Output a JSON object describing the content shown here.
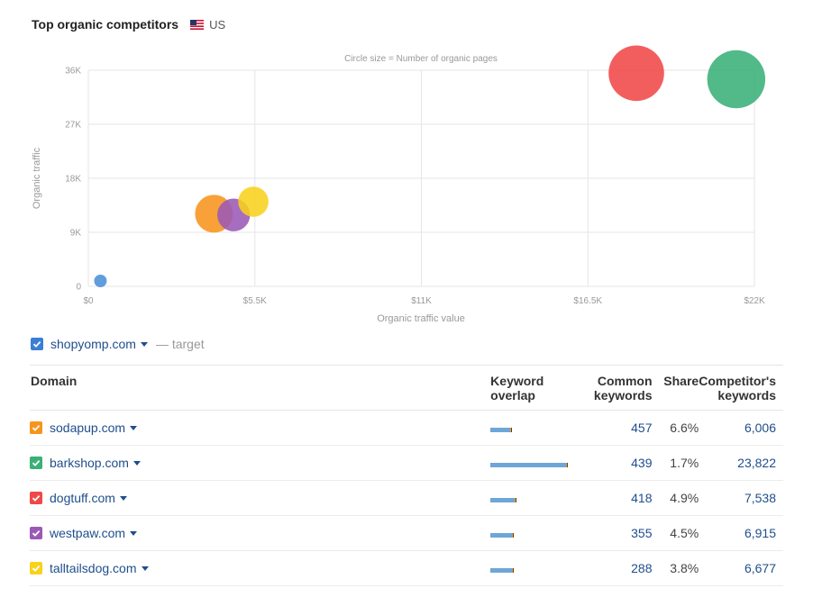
{
  "header": {
    "title": "Top organic competitors",
    "country": "US"
  },
  "chart_data": {
    "type": "scatter",
    "subtitle": "Circle size = Number of organic pages",
    "xlabel": "Organic traffic value",
    "ylabel": "Organic traffic",
    "x_ticks": [
      "$0",
      "$5.5K",
      "$11K",
      "$16.5K",
      "$22K"
    ],
    "y_ticks": [
      "0",
      "9K",
      "18K",
      "27K",
      "36K"
    ],
    "xlim": [
      0,
      22000
    ],
    "ylim": [
      0,
      36000
    ],
    "grid": true,
    "series": [
      {
        "domain": "shopyomp.com",
        "x": 400,
        "y": 900,
        "size": 1,
        "color": "#4a90d9"
      },
      {
        "domain": "sodapup.com",
        "x": 4150,
        "y": 12100,
        "size": 3,
        "color": "#f7941d"
      },
      {
        "domain": "westpaw.com",
        "x": 4800,
        "y": 11900,
        "size": 2.6,
        "color": "#9b59b6"
      },
      {
        "domain": "talltailsdog.com",
        "x": 5450,
        "y": 14100,
        "size": 2.4,
        "color": "#f8d21c"
      },
      {
        "domain": "dogtuff.com",
        "x": 18100,
        "y": 35500,
        "size": 4.4,
        "color": "#f04848"
      },
      {
        "domain": "barkshop.com",
        "x": 21400,
        "y": 34500,
        "size": 4.6,
        "color": "#3ab077"
      }
    ]
  },
  "target": {
    "domain": "shopyomp.com",
    "note": "— target",
    "color": "#3a7fd5"
  },
  "table": {
    "headers": {
      "domain": "Domain",
      "overlap_1": "Keyword",
      "overlap_2": "overlap",
      "common_1": "Common",
      "common_2": "keywords",
      "share": "Share",
      "comp_1": "Competitor's",
      "comp_2": "keywords"
    },
    "rows": [
      {
        "domain": "sodapup.com",
        "color": "#f7941d",
        "overlap_fraction": 0.26,
        "common": "457",
        "share": "6.6%",
        "competitor_keywords": "6,006"
      },
      {
        "domain": "barkshop.com",
        "color": "#3ab077",
        "overlap_fraction": 1.0,
        "common": "439",
        "share": "1.7%",
        "competitor_keywords": "23,822"
      },
      {
        "domain": "dogtuff.com",
        "color": "#f04848",
        "overlap_fraction": 0.32,
        "common": "418",
        "share": "4.9%",
        "competitor_keywords": "7,538"
      },
      {
        "domain": "westpaw.com",
        "color": "#9b59b6",
        "overlap_fraction": 0.29,
        "common": "355",
        "share": "4.5%",
        "competitor_keywords": "6,915"
      },
      {
        "domain": "talltailsdog.com",
        "color": "#f8d21c",
        "overlap_fraction": 0.28,
        "common": "288",
        "share": "3.8%",
        "competitor_keywords": "6,677"
      }
    ]
  }
}
